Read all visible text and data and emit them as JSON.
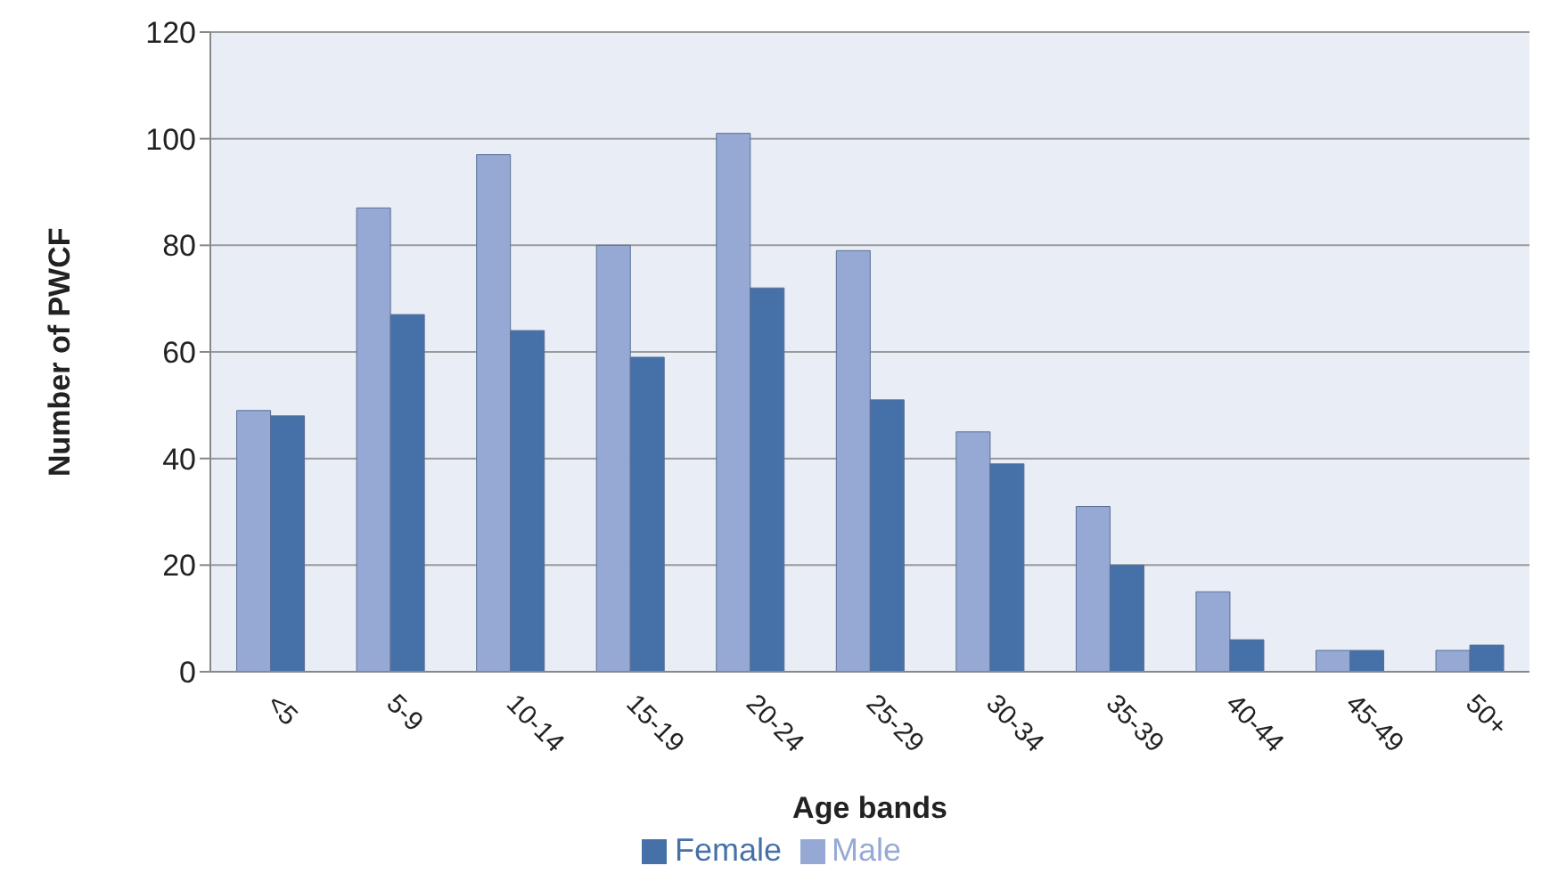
{
  "chart_data": {
    "type": "bar",
    "xlabel": "Age bands",
    "ylabel": "Number of PWCF",
    "categories": [
      "<5",
      "5-9",
      "10-14",
      "15-19",
      "20-24",
      "25-29",
      "30-34",
      "35-39",
      "40-44",
      "45-49",
      "50+"
    ],
    "series": [
      {
        "name": "Male",
        "color": "#95a9d4",
        "values": [
          49,
          87,
          97,
          80,
          101,
          79,
          45,
          31,
          15,
          4,
          4
        ]
      },
      {
        "name": "Female",
        "color": "#4571a8",
        "values": [
          48,
          67,
          64,
          59,
          72,
          51,
          39,
          20,
          6,
          4,
          5
        ]
      }
    ],
    "ylim": [
      0,
      120
    ],
    "yticks": [
      0,
      20,
      40,
      60,
      80,
      100,
      120
    ],
    "grid": "y",
    "legend": "bottom"
  }
}
